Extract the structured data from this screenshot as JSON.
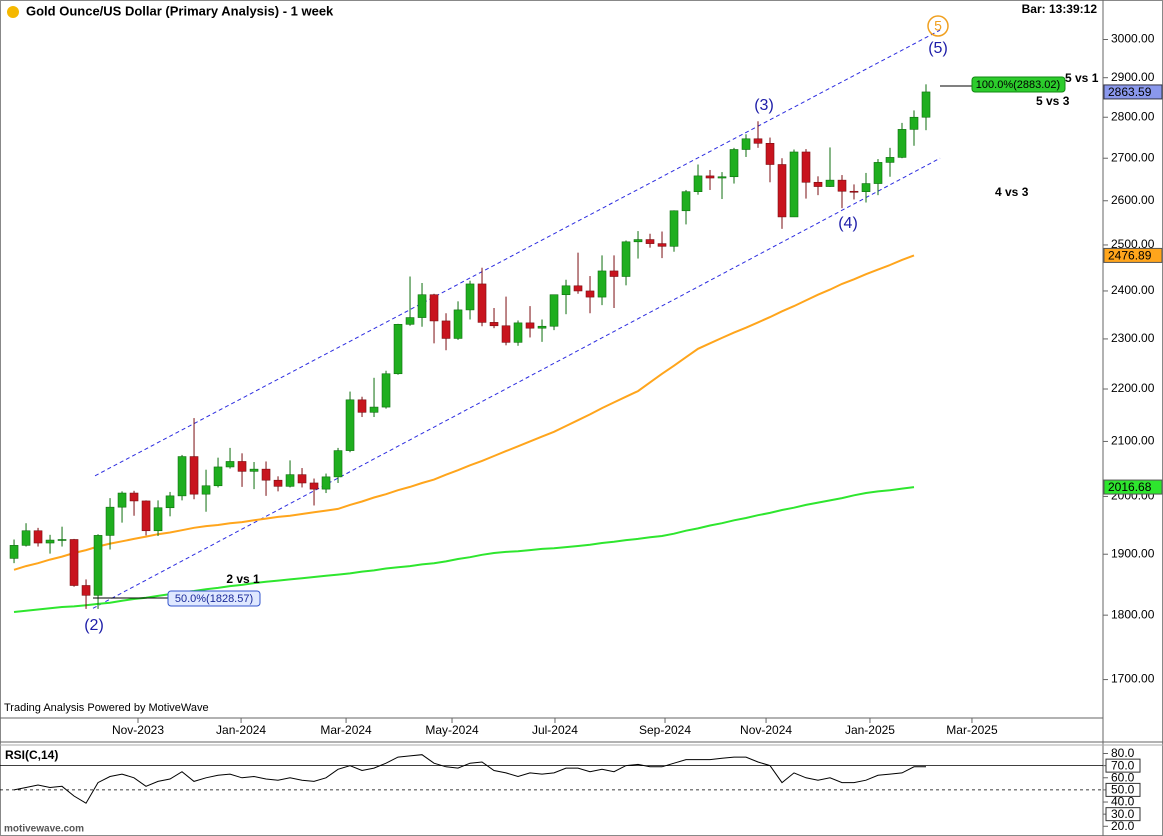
{
  "chart_data": [
    {
      "type": "candlestick",
      "title": "Gold Ounce/US Dollar (Primary Analysis) - 1 week",
      "bar_time": "Bar: 13:39:12",
      "footer": "Trading Analysis Powered by MotiveWave",
      "watermark": "motivewave.com",
      "categories": [
        null,
        null,
        null,
        null,
        null,
        null,
        null,
        null,
        null,
        null,
        null,
        null,
        null,
        null,
        null,
        null,
        null,
        null,
        null,
        null,
        null,
        null,
        null,
        null,
        null,
        null,
        null,
        null,
        null,
        null,
        null,
        null,
        null,
        null,
        null,
        null,
        null,
        null,
        null,
        null,
        null,
        null,
        null,
        null,
        null,
        null,
        null,
        null,
        null,
        null,
        null,
        null,
        null,
        null,
        null,
        null,
        null,
        null,
        null,
        null,
        null,
        null,
        null,
        null,
        null,
        null,
        null,
        null,
        null,
        null,
        null,
        null,
        null,
        null,
        null,
        null,
        null
      ],
      "xlim": [
        -1.17,
        90.5
      ],
      "xticks": [
        {
          "value": 10.33,
          "label": "Nov-2023"
        },
        {
          "value": 18.92,
          "label": "Jan-2024"
        },
        {
          "value": 27.67,
          "label": "Mar-2024"
        },
        {
          "value": 36.5,
          "label": "May-2024"
        },
        {
          "value": 45.08,
          "label": "Jul-2024"
        },
        {
          "value": 54.25,
          "label": "Sep-2024"
        },
        {
          "value": 62.67,
          "label": "Nov-2024"
        },
        {
          "value": 71.33,
          "label": "Jan-2025"
        },
        {
          "value": 79.83,
          "label": "Mar-2025"
        }
      ],
      "ylim": [
        1643,
        3107
      ],
      "log": true,
      "yticks": [
        {
          "value": 1700,
          "label": "1700.00"
        },
        {
          "value": 1800,
          "label": "1800.00"
        },
        {
          "value": 1900,
          "label": "1900.00"
        },
        {
          "value": 2000,
          "label": "2000.00"
        },
        {
          "value": 2100,
          "label": "2100.00"
        },
        {
          "value": 2200,
          "label": "2200.00"
        },
        {
          "value": 2300,
          "label": "2300.00"
        },
        {
          "value": 2400,
          "label": "2400.00"
        },
        {
          "value": 2500,
          "label": "2500.00"
        },
        {
          "value": 2600,
          "label": "2600.00"
        },
        {
          "value": 2700,
          "label": "2700.00"
        },
        {
          "value": 2800,
          "label": "2800.00"
        },
        {
          "value": 2900,
          "label": "2900.00"
        },
        {
          "value": 3000,
          "label": "3000.00"
        }
      ],
      "up_color": "#1fae1f",
      "down_color": "#c8141e",
      "last_color": "#8a98ec",
      "open": [
        1893,
        1915,
        1940,
        1919,
        1924,
        1925,
        1848,
        1832,
        1932,
        1981,
        2006,
        1992,
        1940,
        1980,
        2001,
        2072,
        2004,
        2019,
        2053,
        2063,
        2045,
        2049,
        2029,
        2018,
        2039,
        2024,
        2013,
        2035,
        2083,
        2179,
        2155,
        2165,
        2230,
        2330,
        2344,
        2392,
        2337,
        2301,
        2360,
        2415,
        2334,
        2327,
        2293,
        2333,
        2322,
        2326,
        2392,
        2411,
        2400,
        2387,
        2443,
        2431,
        2507,
        2512,
        2503,
        2497,
        2577,
        2621,
        2658,
        2653,
        2656,
        2721,
        2747,
        2736,
        2685,
        2563,
        2715,
        2643,
        2633,
        2648,
        2622,
        2621,
        2640,
        2690,
        2702,
        2770,
        2800
      ],
      "high": [
        1925,
        1953,
        1945,
        1933,
        1947,
        1926,
        1858,
        1934,
        1997,
        2009,
        2010,
        1993,
        1993,
        2008,
        2075,
        2144,
        2048,
        2070,
        2088,
        2078,
        2062,
        2063,
        2036,
        2065,
        2051,
        2032,
        2041,
        2088,
        2195,
        2185,
        2222,
        2236,
        2331,
        2431,
        2417,
        2394,
        2353,
        2378,
        2422,
        2450,
        2364,
        2388,
        2338,
        2368,
        2340,
        2392,
        2424,
        2483,
        2432,
        2477,
        2477,
        2510,
        2531,
        2525,
        2530,
        2578,
        2625,
        2685,
        2672,
        2667,
        2725,
        2758,
        2790,
        2750,
        2700,
        2721,
        2722,
        2657,
        2726,
        2660,
        2638,
        2665,
        2698,
        2725,
        2786,
        2817,
        2883
      ],
      "low": [
        1885,
        1913,
        1913,
        1901,
        1913,
        1846,
        1810,
        1810,
        1908,
        1954,
        1966,
        1932,
        1931,
        1965,
        1993,
        1995,
        1973,
        2016,
        2050,
        2017,
        2013,
        2001,
        2009,
        2016,
        2016,
        1984,
        2006,
        2024,
        2080,
        2146,
        2146,
        2162,
        2228,
        2327,
        2325,
        2291,
        2277,
        2298,
        2340,
        2326,
        2322,
        2287,
        2286,
        2303,
        2294,
        2318,
        2351,
        2394,
        2353,
        2370,
        2364,
        2412,
        2470,
        2494,
        2471,
        2485,
        2546,
        2614,
        2625,
        2604,
        2640,
        2703,
        2725,
        2643,
        2536,
        2563,
        2605,
        2613,
        2632,
        2583,
        2603,
        2596,
        2613,
        2656,
        2700,
        2730,
        2768
      ],
      "close": [
        1915,
        1940,
        1919,
        1924,
        1925,
        1848,
        1832,
        1932,
        1981,
        2006,
        1992,
        1940,
        1980,
        2001,
        2072,
        2004,
        2019,
        2053,
        2063,
        2045,
        2049,
        2029,
        2018,
        2039,
        2024,
        2013,
        2035,
        2083,
        2179,
        2155,
        2165,
        2230,
        2330,
        2344,
        2392,
        2337,
        2301,
        2360,
        2415,
        2334,
        2327,
        2293,
        2333,
        2322,
        2326,
        2392,
        2411,
        2400,
        2387,
        2443,
        2431,
        2507,
        2512,
        2503,
        2497,
        2577,
        2621,
        2658,
        2653,
        2656,
        2721,
        2747,
        2736,
        2685,
        2563,
        2715,
        2643,
        2633,
        2648,
        2622,
        2621,
        2640,
        2690,
        2702,
        2770,
        2800,
        2863.59
      ],
      "series": [
        {
          "color": "#ffa51c",
          "values": [
            1874,
            1880,
            1885,
            1891,
            1896,
            1902,
            1907,
            1913,
            1918,
            1922,
            1926,
            1930,
            1934,
            1937,
            1941,
            1945,
            1948,
            1950,
            1953,
            1955,
            1958,
            1961,
            1964,
            1966,
            1969,
            1972,
            1975,
            1978,
            1985,
            1991,
            1998,
            2004,
            2011,
            2017,
            2024,
            2030,
            2039,
            2047,
            2056,
            2064,
            2073,
            2082,
            2091,
            2100,
            2109,
            2118,
            2129,
            2140,
            2151,
            2163,
            2174,
            2185,
            2196,
            2213,
            2230,
            2246,
            2263,
            2280,
            2291,
            2302,
            2313,
            2323,
            2334,
            2345,
            2357,
            2368,
            2380,
            2392,
            2403,
            2415,
            2425,
            2436,
            2446,
            2456,
            2467,
            2476.89,
            null
          ]
        },
        {
          "color": "#2ee62e",
          "values": [
            1805,
            1807,
            1809,
            1811,
            1813,
            1814,
            1816,
            1818,
            1820,
            1823,
            1826,
            1828,
            1831,
            1834,
            1837,
            1839,
            1842,
            1844,
            1847,
            1849,
            1852,
            1854,
            1856,
            1858,
            1860,
            1862,
            1864,
            1866,
            1868,
            1871,
            1873,
            1876,
            1878,
            1880,
            1883,
            1885,
            1888,
            1892,
            1895,
            1899,
            1902,
            1904,
            1905,
            1907,
            1909,
            1910,
            1912,
            1914,
            1916,
            1919,
            1921,
            1924,
            1926,
            1929,
            1931,
            1935,
            1940,
            1944,
            1949,
            1953,
            1958,
            1962,
            1967,
            1971,
            1976,
            1980,
            1985,
            1989,
            1993,
            1997,
            2002,
            2006,
            2009,
            2011,
            2014,
            2016.68,
            null
          ]
        }
      ],
      "trend_channel": [
        {
          "x": [
            6.75,
            77.17
          ],
          "values": [
            2037,
            3025
          ]
        },
        {
          "x": [
            6.58,
            77.17
          ],
          "values": [
            1811,
            2700
          ]
        }
      ],
      "channel_color": "#2d2de0",
      "waves": [
        "(2)",
        "(3)",
        "(4)",
        "(5)",
        "5"
      ],
      "annotations": [
        "2 vs 1",
        "5 vs 1",
        "5 vs 3",
        "4 vs 3"
      ],
      "fib_labels": [
        "50.0%(1828.57)",
        "100.0%(2883.02)"
      ]
    },
    {
      "type": "line",
      "label": "RSI(C,14)",
      "color": "#000000",
      "ylim": [
        12,
        87
      ],
      "yticks": [
        {
          "value": 20,
          "label": "20.0"
        },
        {
          "value": 30,
          "label": "30.0",
          "highlight": true
        },
        {
          "value": 40,
          "label": "40.0"
        },
        {
          "value": 50,
          "label": "50.0",
          "highlight": true
        },
        {
          "value": 60,
          "label": "60.0"
        },
        {
          "value": 70,
          "label": "70.0",
          "highlight": true
        },
        {
          "value": 80,
          "label": "80.0"
        }
      ],
      "levels": [
        70,
        50
      ],
      "level_styles": [
        "solid",
        "dashed"
      ],
      "values": [
        50,
        52,
        54,
        52,
        53,
        45,
        39,
        56,
        61,
        63,
        60,
        53,
        57,
        59,
        65,
        57,
        60,
        62,
        63,
        60,
        61,
        59,
        58,
        60,
        58,
        57,
        60,
        67,
        70,
        66,
        68,
        72,
        77,
        78,
        79,
        72,
        69,
        68,
        72,
        73,
        66,
        64,
        61,
        64,
        63,
        64,
        68,
        68,
        65,
        67,
        65,
        70,
        71,
        69,
        69,
        72,
        75,
        75,
        75,
        76,
        77,
        77,
        73,
        70,
        56,
        64,
        60,
        58,
        60,
        56,
        56,
        58,
        62,
        63,
        64,
        69,
        69
      ]
    }
  ]
}
